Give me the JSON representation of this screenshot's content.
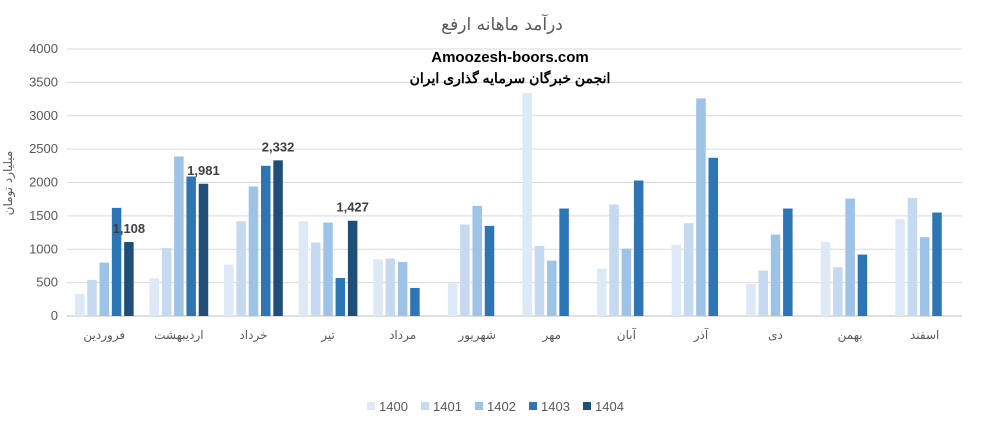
{
  "chart_data": {
    "type": "bar",
    "title": "درآمد ماهانه ارفع",
    "watermark_site": "Amoozesh-boors.com",
    "watermark_org": "انجمن خبرگان سرمایه گذاری ایران",
    "ylabel": "میلیارد تومان",
    "xlabel": "",
    "ylim": [
      0,
      4000
    ],
    "yticks": [
      "0",
      "500",
      "1000",
      "1500",
      "2000",
      "2500",
      "3000",
      "3500",
      "4000"
    ],
    "grid": true,
    "legend_position": "bottom",
    "categories": [
      "فروردین",
      "اردیبهشت",
      "خرداد",
      "تیر",
      "مرداد",
      "شهریور",
      "مهر",
      "آبان",
      "آذر",
      "دی",
      "بهمن",
      "اسفند"
    ],
    "series": [
      {
        "name": "1400",
        "color": "#dde9f6",
        "values": [
          330,
          560,
          770,
          1420,
          850,
          490,
          3340,
          710,
          1070,
          480,
          1110,
          1450
        ]
      },
      {
        "name": "1401",
        "color": "#c5d9f0",
        "values": [
          540,
          1020,
          1420,
          1100,
          860,
          1370,
          1050,
          1670,
          1390,
          680,
          730,
          1770
        ]
      },
      {
        "name": "1402",
        "color": "#9dc3e6",
        "values": [
          800,
          2390,
          1940,
          1400,
          810,
          1650,
          830,
          1010,
          3260,
          1220,
          1760,
          1180
        ]
      },
      {
        "name": "1403",
        "color": "#2e75b6",
        "values": [
          1620,
          2090,
          2250,
          570,
          420,
          1350,
          1610,
          2030,
          2370,
          1610,
          920,
          1550
        ]
      },
      {
        "name": "1404",
        "color": "#1f4e79",
        "values": [
          1108,
          1981,
          2332,
          1427,
          null,
          null,
          null,
          null,
          null,
          null,
          null,
          null
        ]
      }
    ],
    "data_labels": [
      {
        "category": "فروردین",
        "series": "1404",
        "text": "1,108"
      },
      {
        "category": "اردیبهشت",
        "series": "1404",
        "text": "1,981"
      },
      {
        "category": "خرداد",
        "series": "1404",
        "text": "2,332"
      },
      {
        "category": "تیر",
        "series": "1404",
        "text": "1,427"
      }
    ]
  }
}
